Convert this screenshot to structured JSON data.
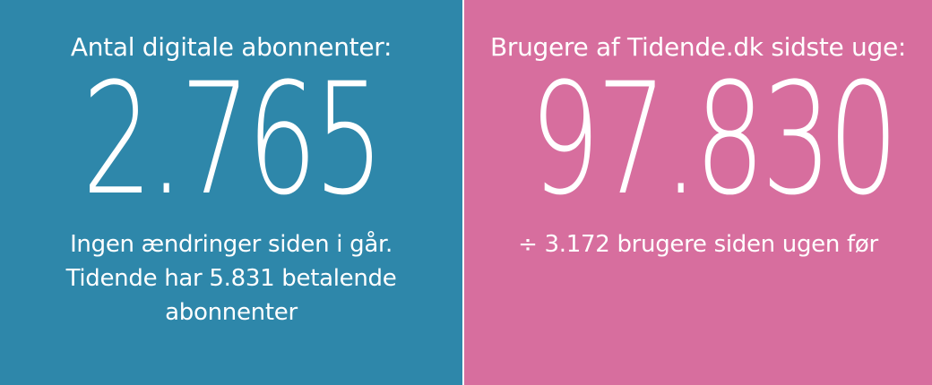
{
  "left": {
    "heading": "Antal digitale abonnenter:",
    "number": "2.765",
    "lines": [
      "Ingen ændringer siden i går.",
      "Tidende har 5.831 betalende",
      "abonnenter"
    ],
    "background": "#2e87aa"
  },
  "right": {
    "heading": "Brugere af Tidende.dk sidste uge:",
    "number": "97.830",
    "lines": [
      "÷ 3.172 brugere siden ugen før"
    ],
    "background": "#d76e9e"
  }
}
